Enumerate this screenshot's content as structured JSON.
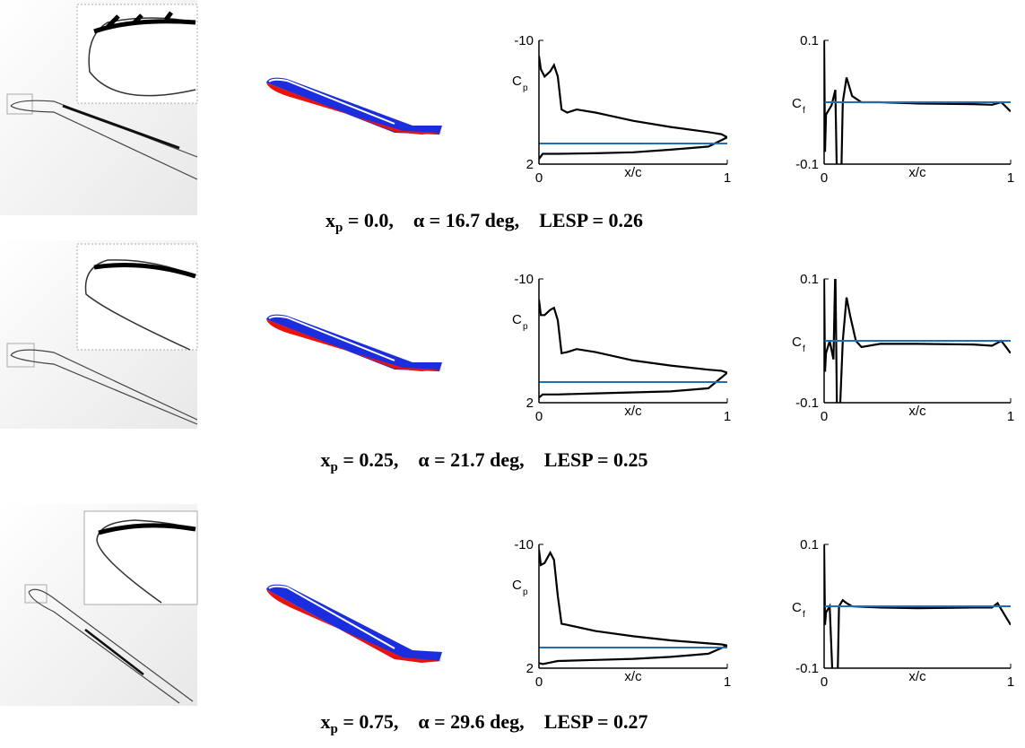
{
  "chart_data": [
    {
      "type": "line",
      "ylabel": "C",
      "ylabel_sub": "p",
      "xlabel": "x/c",
      "xlim": [
        0,
        1
      ],
      "ylim": [
        2,
        -10
      ],
      "xticks": [
        0,
        1
      ],
      "yticks": [
        -10,
        2
      ],
      "series": [
        {
          "color": "#000000",
          "x": [
            0,
            0.01,
            0.03,
            0.06,
            0.08,
            0.1,
            0.12,
            0.15,
            0.2,
            0.3,
            0.5,
            0.7,
            0.9,
            0.97,
            1
          ],
          "values": [
            -8.5,
            -7.2,
            -6.5,
            -7,
            -7.6,
            -6.5,
            -3.3,
            -3.0,
            -3.3,
            -3.0,
            -2.2,
            -1.6,
            -1.1,
            -0.9,
            -0.6
          ]
        },
        {
          "color": "#000000",
          "x": [
            0,
            0.02,
            0.1,
            0.3,
            0.5,
            0.7,
            0.9,
            1
          ],
          "values": [
            1.5,
            1.0,
            1.0,
            0.95,
            0.85,
            0.6,
            0.3,
            -0.6
          ]
        },
        {
          "color": "#1f6fb4",
          "x": [
            0,
            1
          ],
          "values": [
            0,
            0
          ]
        }
      ]
    },
    {
      "type": "line",
      "ylabel": "C",
      "ylabel_sub": "f",
      "xlabel": "x/c",
      "xlim": [
        0,
        1
      ],
      "ylim": [
        -0.1,
        0.1
      ],
      "xticks": [
        0,
        1
      ],
      "yticks": [
        -0.1,
        0.1
      ],
      "series": [
        {
          "color": "#000000",
          "x": [
            0,
            0.005,
            0.01,
            0.04,
            0.06,
            0.07,
            0.09,
            0.1,
            0.12,
            0.15,
            0.2,
            0.3,
            0.5,
            0.8,
            0.9,
            0.95,
            1
          ],
          "values": [
            0.1,
            -0.08,
            -0.02,
            -0.005,
            0.02,
            -0.15,
            -0.15,
            0,
            0.04,
            0.01,
            0.0,
            0.0,
            -0.002,
            -0.003,
            -0.004,
            0.0,
            -0.015
          ]
        },
        {
          "color": "#1f6fb4",
          "x": [
            0,
            1
          ],
          "values": [
            0,
            0
          ]
        }
      ]
    },
    {
      "type": "line",
      "ylabel": "C",
      "ylabel_sub": "p",
      "xlabel": "x/c",
      "xlim": [
        0,
        1
      ],
      "ylim": [
        2,
        -10
      ],
      "xticks": [
        0,
        1
      ],
      "yticks": [
        -10,
        2
      ],
      "series": [
        {
          "color": "#000000",
          "x": [
            0,
            0.01,
            0.03,
            0.06,
            0.08,
            0.1,
            0.12,
            0.15,
            0.2,
            0.3,
            0.5,
            0.7,
            0.9,
            0.97,
            1
          ],
          "values": [
            -8,
            -6.5,
            -6.5,
            -7,
            -7.2,
            -6,
            -2.8,
            -2.9,
            -3.2,
            -2.9,
            -2.1,
            -1.6,
            -1.2,
            -1.1,
            -0.9
          ]
        },
        {
          "color": "#000000",
          "x": [
            0,
            0.02,
            0.1,
            0.3,
            0.5,
            0.7,
            0.9,
            1
          ],
          "values": [
            1.5,
            1.2,
            1.2,
            1.1,
            1.0,
            0.9,
            0.6,
            -0.9
          ]
        },
        {
          "color": "#1f6fb4",
          "x": [
            0,
            1
          ],
          "values": [
            0,
            0
          ]
        }
      ]
    },
    {
      "type": "line",
      "ylabel": "C",
      "ylabel_sub": "f",
      "xlabel": "x/c",
      "xlim": [
        0,
        1
      ],
      "ylim": [
        -0.1,
        0.1
      ],
      "xticks": [
        0,
        1
      ],
      "yticks": [
        -0.1,
        0.1
      ],
      "series": [
        {
          "color": "#000000",
          "x": [
            0,
            0.005,
            0.01,
            0.03,
            0.05,
            0.06,
            0.07,
            0.08,
            0.1,
            0.12,
            0.14,
            0.17,
            0.2,
            0.3,
            0.5,
            0.8,
            0.9,
            0.95,
            1
          ],
          "values": [
            0.1,
            -0.05,
            -0.02,
            0.0,
            -0.03,
            0.12,
            -0.15,
            -0.15,
            0.0,
            0.07,
            0.04,
            0.0,
            -0.01,
            -0.005,
            -0.005,
            -0.006,
            -0.008,
            0.0,
            -0.02
          ]
        },
        {
          "color": "#1f6fb4",
          "x": [
            0,
            1
          ],
          "values": [
            0,
            0
          ]
        }
      ]
    },
    {
      "type": "line",
      "ylabel": "C",
      "ylabel_sub": "p",
      "xlabel": "x/c",
      "xlim": [
        0,
        1
      ],
      "ylim": [
        2,
        -10
      ],
      "xticks": [
        0,
        1
      ],
      "yticks": [
        -10,
        2
      ],
      "series": [
        {
          "color": "#000000",
          "x": [
            0,
            0.01,
            0.03,
            0.06,
            0.08,
            0.1,
            0.12,
            0.15,
            0.2,
            0.3,
            0.5,
            0.7,
            0.9,
            0.97,
            1
          ],
          "values": [
            -9.5,
            -8,
            -8.2,
            -9.2,
            -8.5,
            -5,
            -2.3,
            -2.2,
            -2.0,
            -1.6,
            -1.1,
            -0.7,
            -0.4,
            -0.3,
            -0.2
          ]
        },
        {
          "color": "#000000",
          "x": [
            0,
            0.02,
            0.1,
            0.3,
            0.5,
            0.7,
            0.9,
            1
          ],
          "values": [
            1.5,
            1.6,
            1.3,
            1.2,
            1.1,
            0.9,
            0.6,
            -0.2
          ]
        },
        {
          "color": "#1f6fb4",
          "x": [
            0,
            1
          ],
          "values": [
            0,
            0
          ]
        }
      ]
    },
    {
      "type": "line",
      "ylabel": "C",
      "ylabel_sub": "f",
      "xlabel": "x/c",
      "xlim": [
        0,
        1
      ],
      "ylim": [
        -0.1,
        0.1
      ],
      "xticks": [
        0,
        1
      ],
      "yticks": [
        -0.1,
        0.1
      ],
      "series": [
        {
          "color": "#000000",
          "x": [
            0,
            0.005,
            0.01,
            0.03,
            0.05,
            0.07,
            0.08,
            0.1,
            0.12,
            0.15,
            0.3,
            0.5,
            0.8,
            0.9,
            0.93,
            0.96,
            1
          ],
          "values": [
            0.1,
            -0.03,
            -0.01,
            0.0,
            -0.15,
            -0.15,
            0.0,
            0.01,
            0.005,
            0.0,
            -0.002,
            -0.003,
            -0.002,
            -0.002,
            0.005,
            -0.01,
            -0.03
          ]
        },
        {
          "color": "#1f6fb4",
          "x": [
            0,
            1
          ],
          "values": [
            0,
            0
          ]
        }
      ]
    }
  ],
  "captions": [
    {
      "x": "x",
      "sub": "p",
      "rest": " = 0.0,",
      "alpha": "α = 16.7 deg,",
      "lesp": "LESP = 0.26"
    },
    {
      "x": "x",
      "sub": "p",
      "rest": " = 0.25,",
      "alpha": "α = 21.7 deg,",
      "lesp": "LESP = 0.25"
    },
    {
      "x": "x",
      "sub": "p",
      "rest": " = 0.75,",
      "alpha": "α = 29.6 deg,",
      "lesp": "LESP = 0.27"
    }
  ]
}
